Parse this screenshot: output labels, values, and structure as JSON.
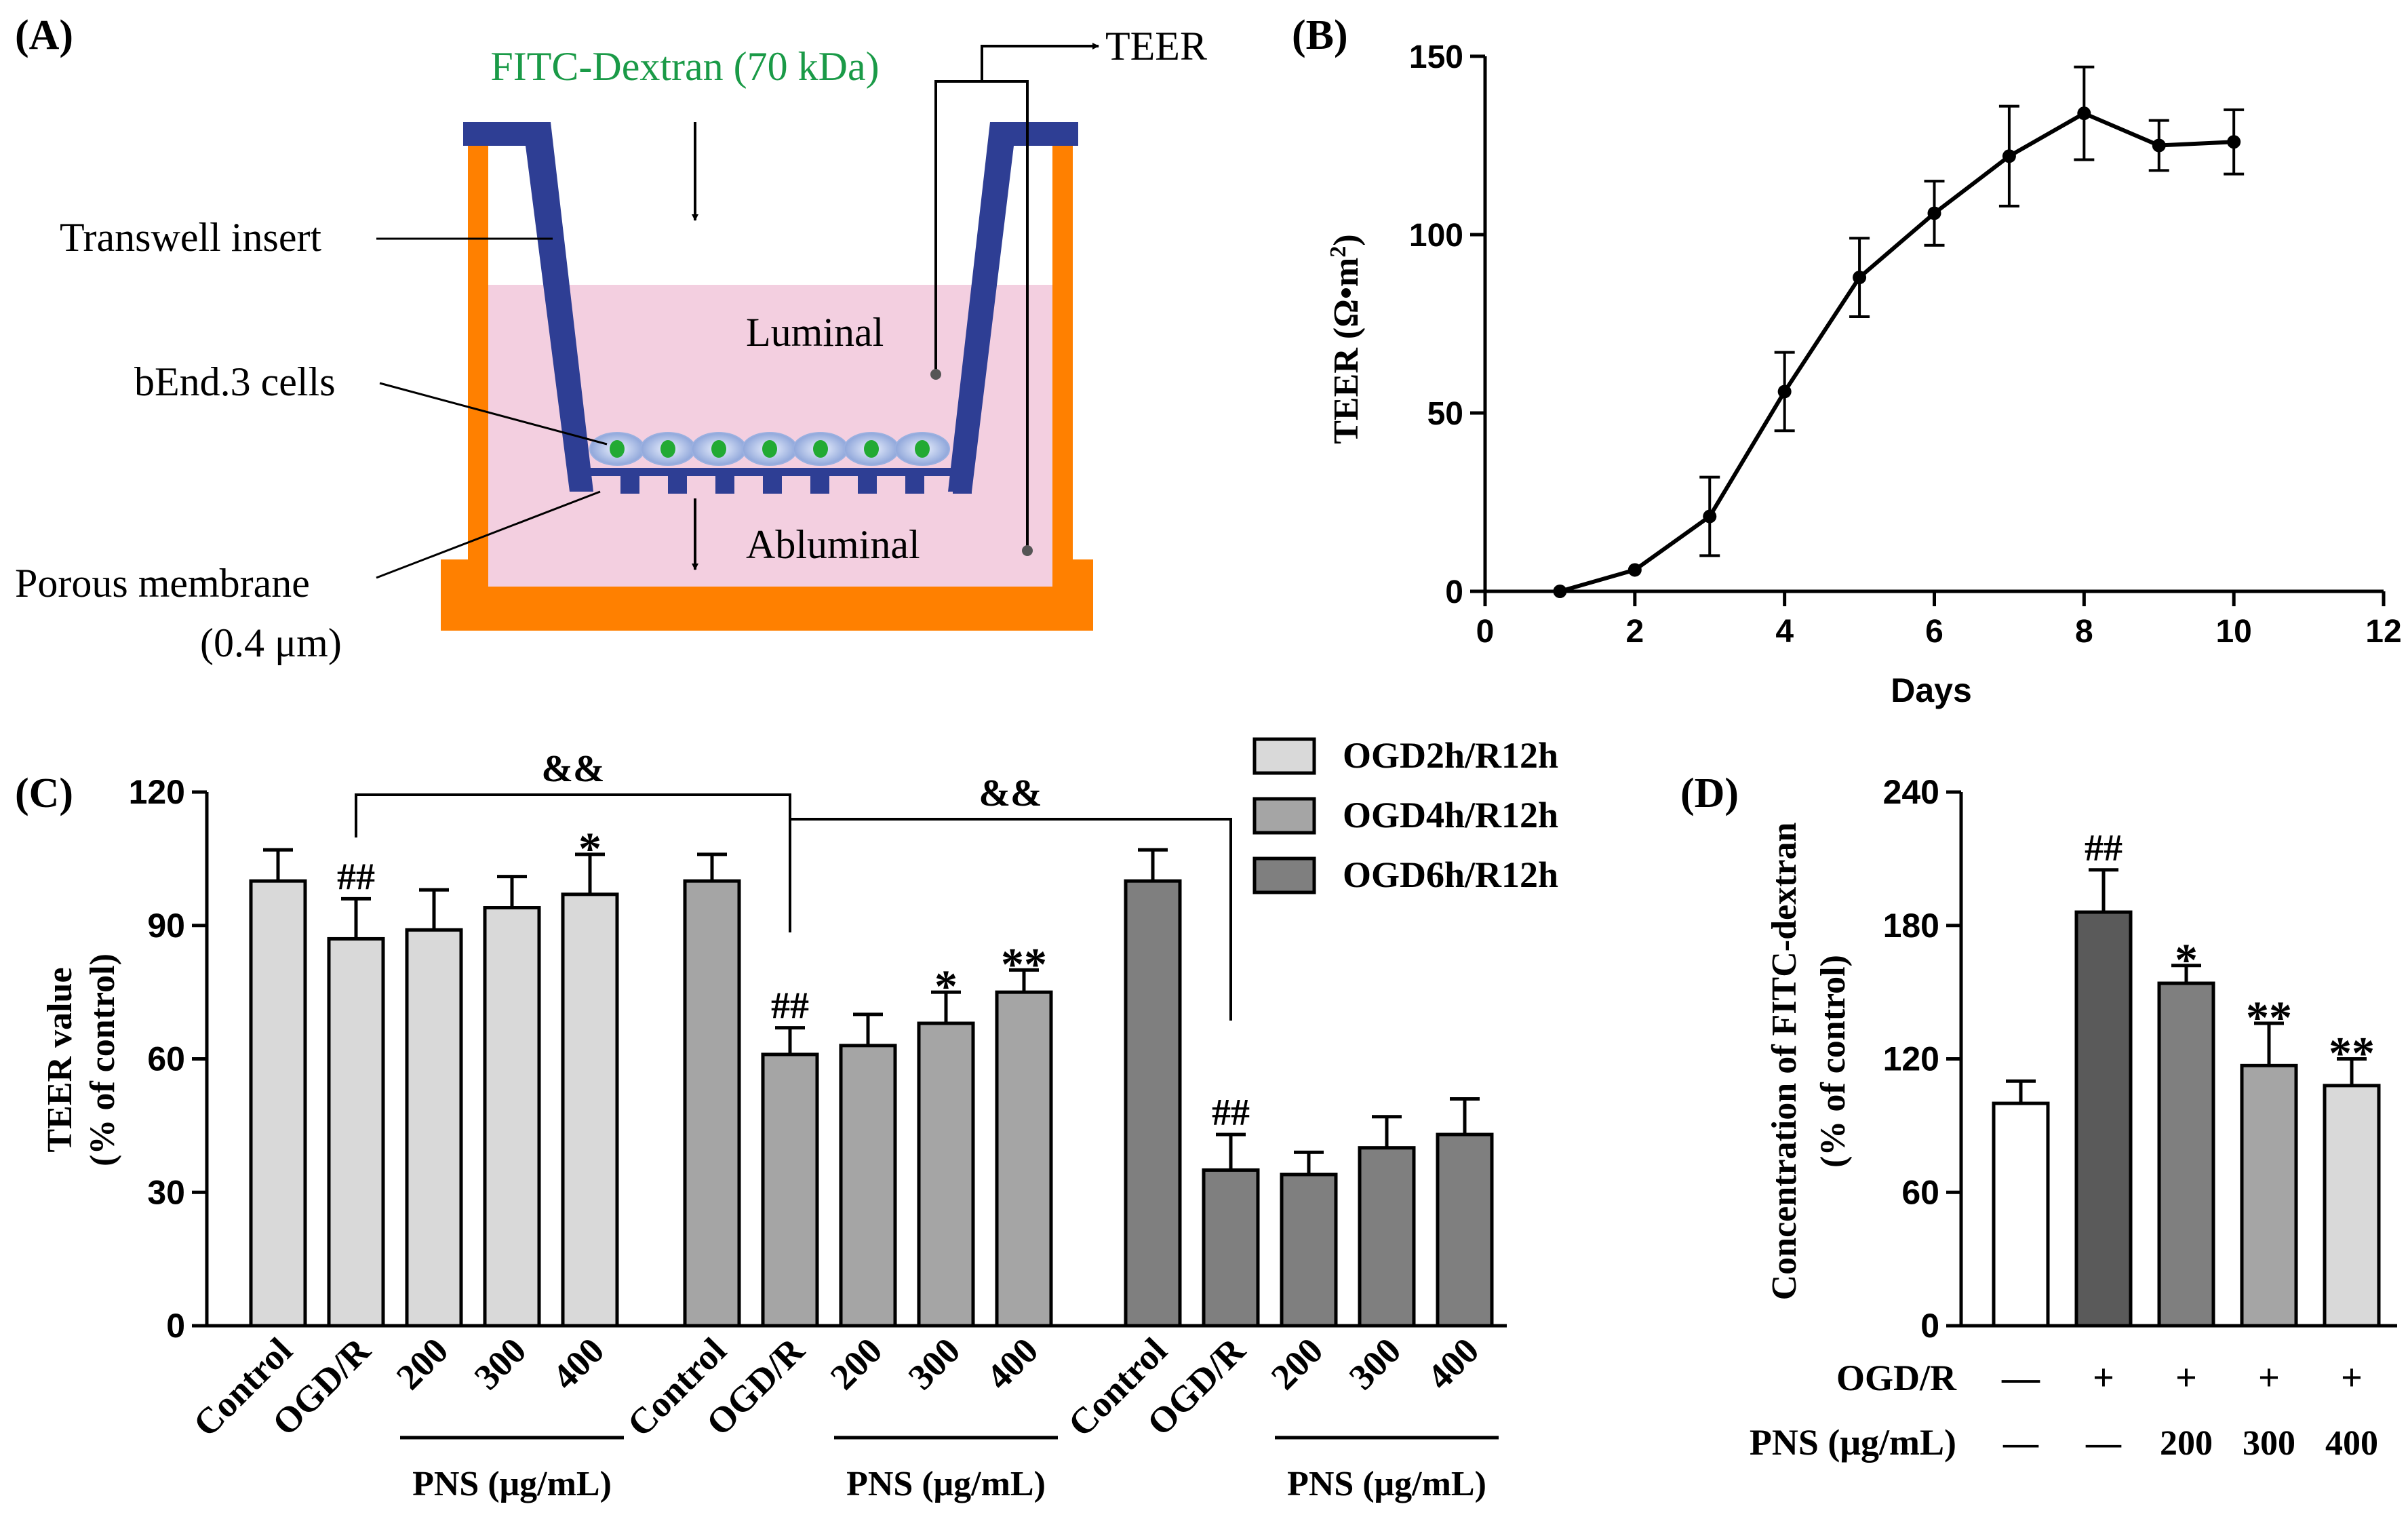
{
  "panel_labels": {
    "a": "(A)",
    "b": "(B)",
    "c": "(C)",
    "d": "(D)"
  },
  "diagram": {
    "fitc_label": "FITC-Dextran (70 kDa)",
    "teer_label": "TEER",
    "transwell_label": "Transwell insert",
    "cells_label": "bEnd.3 cells",
    "membrane_label": "Porous membrane",
    "pore_label": "(0.4 μm)",
    "luminal_label": "Luminal",
    "abluminal_label": "Abluminal",
    "colors": {
      "well": "#FF8000",
      "insert": "#2E3E94",
      "medium": "#F3CFE0",
      "cell": "#BCCDF0",
      "nucleus": "#22AA33",
      "fitc_text": "#1A9A47"
    }
  },
  "chart_data": [
    {
      "id": "B",
      "type": "line",
      "title": "",
      "xlabel": "Days",
      "ylabel": "TEER (Ω•m²)",
      "ylabel_main": "TEER (Ω•m",
      "ylabel_sup": "2",
      "ylabel_close": ")",
      "xlim": [
        0,
        12
      ],
      "ylim": [
        0,
        150
      ],
      "xticks": [
        0,
        2,
        4,
        6,
        8,
        10,
        12
      ],
      "yticks": [
        0,
        50,
        100,
        150
      ],
      "x": [
        1,
        2,
        3,
        4,
        5,
        6,
        7,
        8,
        9,
        10
      ],
      "y": [
        0,
        6,
        21,
        56,
        88,
        106,
        122,
        134,
        125,
        126
      ],
      "err": [
        0,
        0,
        11,
        11,
        11,
        9,
        14,
        13,
        7,
        9
      ],
      "grid": false
    },
    {
      "id": "C",
      "type": "bar",
      "title": "",
      "ylabel_line1": "TEER value",
      "ylabel_line2": "(% of control)",
      "ylim": [
        0,
        120
      ],
      "yticks": [
        0,
        30,
        60,
        90,
        120
      ],
      "categories": [
        "Control",
        "OGD/R",
        "200",
        "300",
        "400"
      ],
      "pns_label": "PNS (μg/mL)",
      "legend_position": "top-right",
      "series": [
        {
          "name": "OGD2h/R12h",
          "color": "#D9D9D9",
          "values": [
            100,
            87,
            89,
            94,
            97
          ],
          "errors": [
            7,
            9,
            9,
            7,
            9
          ],
          "marks": [
            "",
            "##",
            "",
            "",
            "*"
          ]
        },
        {
          "name": "OGD4h/R12h",
          "color": "#A5A5A5",
          "values": [
            100,
            61,
            63,
            68,
            75
          ],
          "errors": [
            6,
            6,
            7,
            7,
            5
          ],
          "marks": [
            "",
            "##",
            "",
            "*",
            "**"
          ]
        },
        {
          "name": "OGD6h/R12h",
          "color": "#7F7F7F",
          "values": [
            100,
            35,
            34,
            40,
            43
          ],
          "errors": [
            7,
            8,
            5,
            7,
            8
          ],
          "marks": [
            "",
            "##",
            "",
            "",
            ""
          ]
        }
      ],
      "brackets": [
        "&&",
        "&&"
      ]
    },
    {
      "id": "D",
      "type": "bar",
      "title": "",
      "ylabel_line1": "Concentration of FITC-dextran",
      "ylabel_line2": "(% of control)",
      "ylim": [
        0,
        240
      ],
      "yticks": [
        0,
        60,
        120,
        180,
        240
      ],
      "values": [
        100,
        186,
        154,
        117,
        108
      ],
      "errors": [
        10,
        19,
        8,
        19,
        12
      ],
      "colors": [
        "#FFFFFF",
        "#5A5A5A",
        "#7F7F7F",
        "#A5A5A5",
        "#D9D9D9"
      ],
      "marks": [
        "",
        "##",
        "*",
        "**",
        "**"
      ],
      "ogd_label": "OGD/R",
      "ogd_row": [
        "—",
        "+",
        "+",
        "+",
        "+"
      ],
      "pns_label": "PNS (μg/mL)",
      "pns_row": [
        "—",
        "—",
        "200",
        "300",
        "400"
      ]
    }
  ]
}
